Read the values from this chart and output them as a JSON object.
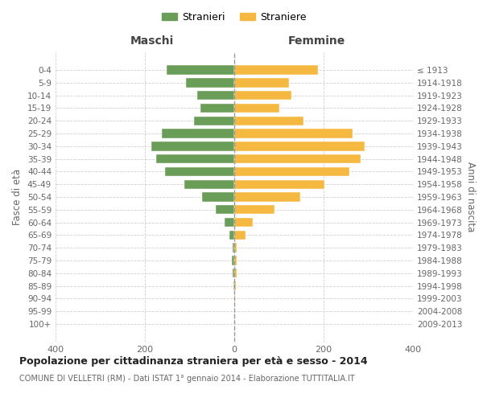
{
  "age_groups": [
    "0-4",
    "5-9",
    "10-14",
    "15-19",
    "20-24",
    "25-29",
    "30-34",
    "35-39",
    "40-44",
    "45-49",
    "50-54",
    "55-59",
    "60-64",
    "65-69",
    "70-74",
    "75-79",
    "80-84",
    "85-89",
    "90-94",
    "95-99",
    "100+"
  ],
  "birth_years": [
    "2009-2013",
    "2004-2008",
    "1999-2003",
    "1994-1998",
    "1989-1993",
    "1984-1988",
    "1979-1983",
    "1974-1978",
    "1969-1973",
    "1964-1968",
    "1959-1963",
    "1954-1958",
    "1949-1953",
    "1944-1948",
    "1939-1943",
    "1934-1938",
    "1929-1933",
    "1924-1928",
    "1919-1923",
    "1914-1918",
    "≤ 1913"
  ],
  "males": [
    152,
    108,
    82,
    75,
    90,
    162,
    185,
    175,
    155,
    112,
    72,
    42,
    22,
    10,
    4,
    5,
    3,
    2,
    0,
    0,
    0
  ],
  "females": [
    188,
    122,
    128,
    100,
    155,
    265,
    292,
    282,
    258,
    202,
    148,
    90,
    42,
    26,
    6,
    6,
    5,
    3,
    2,
    0,
    0
  ],
  "male_color": "#6a9e58",
  "female_color": "#f5b942",
  "male_label": "Stranieri",
  "female_label": "Straniere",
  "title": "Popolazione per cittadinanza straniera per età e sesso - 2014",
  "subtitle": "COMUNE DI VELLETRI (RM) - Dati ISTAT 1° gennaio 2014 - Elaborazione TUTTITALIA.IT",
  "header_left": "Maschi",
  "header_right": "Femmine",
  "ylabel_left": "Fasce di età",
  "ylabel_right": "Anni di nascita",
  "xlim": 400,
  "background_color": "#ffffff",
  "grid_color": "#d0d0d0",
  "bar_height": 0.72
}
